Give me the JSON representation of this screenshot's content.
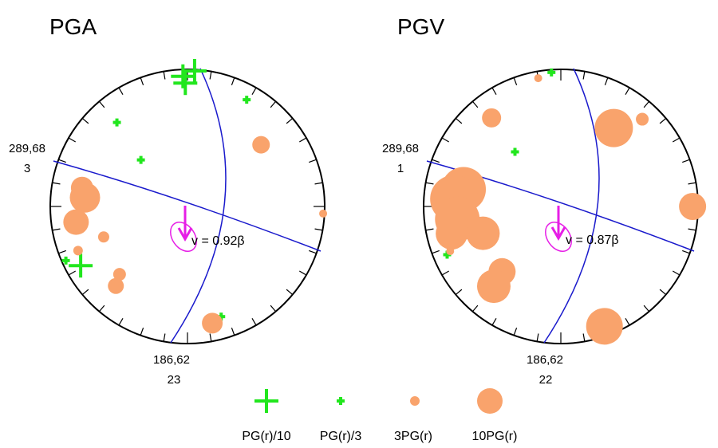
{
  "colors": {
    "nodal_plane": "#1a1acc",
    "amplitude_high": "#f9a36c",
    "amplitude_low": "#22e61e",
    "rupture_direction": "#e61ee6",
    "frame": "#000000"
  },
  "panels": [
    {
      "title": "PGA",
      "strike_dip_1": "289,68",
      "count_1": "3",
      "strike_dip_2": "186,62",
      "count_2": "23",
      "velocity_label": "v = 0.92β",
      "symbols": [
        {
          "kind": "plus",
          "size": "large",
          "az": 3,
          "r": 0.99
        },
        {
          "kind": "plus",
          "size": "large",
          "az": -2,
          "r": 0.95
        },
        {
          "kind": "plus",
          "size": "large",
          "az": -1,
          "r": 0.9
        },
        {
          "kind": "plus",
          "size": "small",
          "az": -40,
          "r": 0.8
        },
        {
          "kind": "plus",
          "size": "small",
          "az": 29,
          "r": 0.89
        },
        {
          "kind": "plus",
          "size": "small",
          "az": -45,
          "r": 0.48
        },
        {
          "kind": "plus",
          "size": "large",
          "az": -119,
          "r": 0.89
        },
        {
          "kind": "plus",
          "size": "small",
          "az": -114,
          "r": 0.97
        },
        {
          "kind": "plus",
          "size": "small",
          "az": 163,
          "r": 0.84
        },
        {
          "kind": "circle",
          "size": 22,
          "az": 50,
          "r": 0.7
        },
        {
          "kind": "circle",
          "size": 10,
          "az": 93,
          "r": 0.99
        },
        {
          "kind": "circle",
          "size": 28,
          "az": -80,
          "r": 0.78
        },
        {
          "kind": "circle",
          "size": 38,
          "az": -85,
          "r": 0.75
        },
        {
          "kind": "circle",
          "size": 32,
          "az": -98,
          "r": 0.82
        },
        {
          "kind": "circle",
          "size": 14,
          "az": -110,
          "r": 0.65
        },
        {
          "kind": "circle",
          "size": 12,
          "az": -112,
          "r": 0.86
        },
        {
          "kind": "circle",
          "size": 16,
          "az": -135,
          "r": 0.7
        },
        {
          "kind": "circle",
          "size": 20,
          "az": -138,
          "r": 0.78
        },
        {
          "kind": "circle",
          "size": 26,
          "az": 168,
          "r": 0.87
        }
      ]
    },
    {
      "title": "PGV",
      "strike_dip_1": "289,68",
      "count_1": "1",
      "strike_dip_2": "186,62",
      "count_2": "22",
      "velocity_label": "v = 0.87β",
      "symbols": [
        {
          "kind": "circle",
          "size": 10,
          "az": -10,
          "r": 0.95
        },
        {
          "kind": "plus",
          "size": "small",
          "az": -4,
          "r": 0.98
        },
        {
          "kind": "circle",
          "size": 24,
          "az": -38,
          "r": 0.82
        },
        {
          "kind": "plus",
          "size": "small",
          "az": -40,
          "r": 0.52
        },
        {
          "kind": "circle",
          "size": 16,
          "az": 43,
          "r": 0.87
        },
        {
          "kind": "circle",
          "size": 48,
          "az": 34,
          "r": 0.69
        },
        {
          "kind": "circle",
          "size": 34,
          "az": 90,
          "r": 0.96
        },
        {
          "kind": "circle",
          "size": 56,
          "az": -80,
          "r": 0.72
        },
        {
          "kind": "circle",
          "size": 60,
          "az": -86,
          "r": 0.78
        },
        {
          "kind": "circle",
          "size": 56,
          "az": -97,
          "r": 0.76
        },
        {
          "kind": "circle",
          "size": 40,
          "az": -104,
          "r": 0.82
        },
        {
          "kind": "circle",
          "size": 42,
          "az": -109,
          "r": 0.6
        },
        {
          "kind": "plus",
          "size": "small",
          "az": -113,
          "r": 0.9
        },
        {
          "kind": "circle",
          "size": 10,
          "az": -112,
          "r": 0.87
        },
        {
          "kind": "circle",
          "size": 34,
          "az": -138,
          "r": 0.64
        },
        {
          "kind": "circle",
          "size": 42,
          "az": -140,
          "r": 0.76
        },
        {
          "kind": "circle",
          "size": 46,
          "az": 160,
          "r": 0.93
        }
      ]
    }
  ],
  "legend": [
    {
      "label": "PG(r)/10",
      "kind": "plus",
      "size": "large"
    },
    {
      "label": "PG(r)/3",
      "kind": "plus",
      "size": "small"
    },
    {
      "label": "3PG(r)",
      "kind": "circle",
      "size": 12
    },
    {
      "label": "10PG(r)",
      "kind": "circle",
      "size": 32
    }
  ]
}
